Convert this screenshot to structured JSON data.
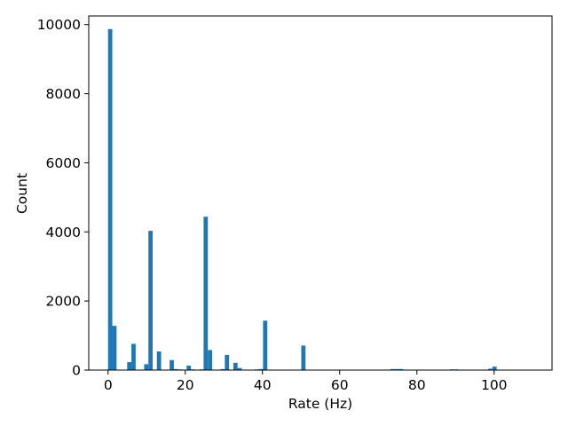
{
  "chart_data": {
    "type": "bar",
    "title": "",
    "xlabel": "Rate (Hz)",
    "ylabel": "Count",
    "xlim": [
      -5,
      115
    ],
    "ylim": [
      0,
      10250
    ],
    "bin_width": 1.1,
    "bar_color": "#1f77b4",
    "grid": false,
    "xticks": [
      0,
      20,
      40,
      60,
      80,
      100
    ],
    "yticks": [
      0,
      2000,
      4000,
      6000,
      8000,
      10000
    ],
    "bins": [
      {
        "x": 0.0,
        "count": 9870
      },
      {
        "x": 1.1,
        "count": 1280
      },
      {
        "x": 4.95,
        "count": 230
      },
      {
        "x": 6.05,
        "count": 760
      },
      {
        "x": 9.35,
        "count": 170
      },
      {
        "x": 10.45,
        "count": 4030
      },
      {
        "x": 12.65,
        "count": 540
      },
      {
        "x": 15.95,
        "count": 290
      },
      {
        "x": 17.05,
        "count": 30
      },
      {
        "x": 18.15,
        "count": 20
      },
      {
        "x": 20.35,
        "count": 130
      },
      {
        "x": 21.45,
        "count": 20
      },
      {
        "x": 23.65,
        "count": 20
      },
      {
        "x": 24.75,
        "count": 4440
      },
      {
        "x": 25.85,
        "count": 580
      },
      {
        "x": 29.15,
        "count": 30
      },
      {
        "x": 30.25,
        "count": 440
      },
      {
        "x": 32.45,
        "count": 210
      },
      {
        "x": 33.55,
        "count": 60
      },
      {
        "x": 37.95,
        "count": 20
      },
      {
        "x": 39.05,
        "count": 30
      },
      {
        "x": 40.15,
        "count": 1430
      },
      {
        "x": 50.05,
        "count": 710
      },
      {
        "x": 73.15,
        "count": 30
      },
      {
        "x": 74.25,
        "count": 30
      },
      {
        "x": 75.35,
        "count": 30
      },
      {
        "x": 88.55,
        "count": 20
      },
      {
        "x": 89.65,
        "count": 20
      },
      {
        "x": 98.45,
        "count": 40
      },
      {
        "x": 99.55,
        "count": 100
      }
    ]
  }
}
